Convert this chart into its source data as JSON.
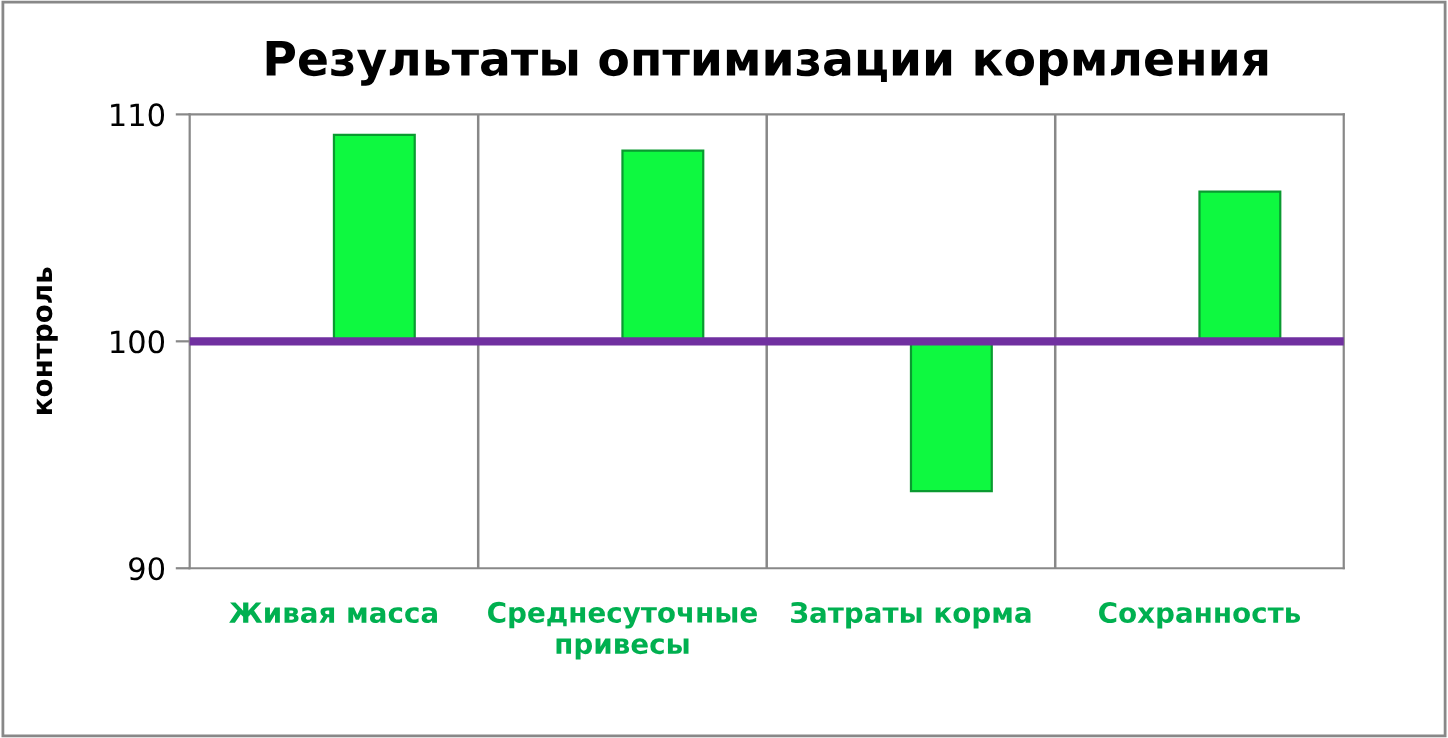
{
  "chart_data": {
    "type": "bar",
    "title": "Результаты оптимизации кормления",
    "ylabel": "контроль",
    "categories": [
      "Живая масса",
      "Среднесуточные\nпривесы",
      "Затраты корма",
      "Сохранность"
    ],
    "base": [
      100,
      100,
      100,
      100
    ],
    "values": [
      9.1,
      8.4,
      -6.6,
      6.6
    ],
    "color": "#0ef940",
    "ylim": [
      90,
      110
    ],
    "yticks": [
      90,
      100,
      110
    ],
    "grid": "x",
    "ref_lines": [
      {
        "axis": "y",
        "value": 100,
        "color": "#7030a0"
      }
    ]
  }
}
